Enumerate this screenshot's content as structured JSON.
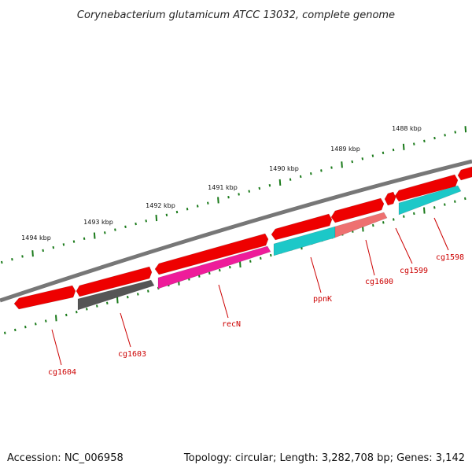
{
  "title": "Corynebacterium glutamicum ATCC 13032, complete genome",
  "footer": {
    "accession": "Accession: NC_006958",
    "summary": "Topology: circular; Length: 3,282,708 bp; Genes: 3,142"
  },
  "colors": {
    "backbone": "#777777",
    "tick": "#1a7a1a",
    "label": "#cc0000",
    "red_gene": "#ee0000",
    "cyan_gene": "#1cc8c8",
    "gray_gene": "#555555",
    "magenta_gene": "#ee1c9a",
    "salmon_gene": "#ee7070"
  },
  "scale_labels": [
    "1488 kbp",
    "1489 kbp",
    "1490 kbp",
    "1491 kbp",
    "1492 kbp",
    "1493 kbp",
    "1494 kbp"
  ],
  "labeled_genes": [
    "cg1598",
    "cg1599",
    "cg1600",
    "ppnK",
    "recN",
    "cg1603",
    "cg1604"
  ]
}
